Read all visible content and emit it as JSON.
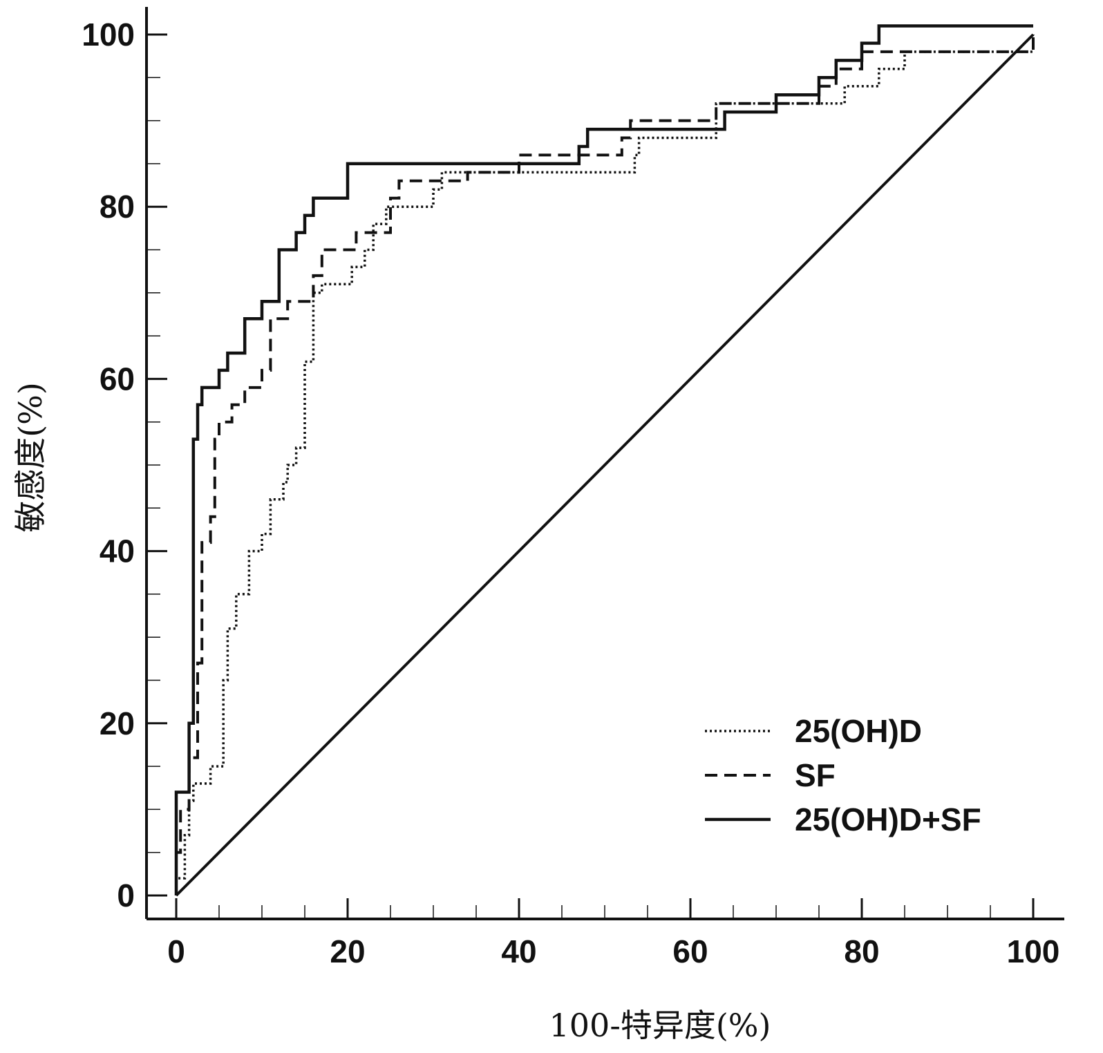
{
  "chart_data": {
    "type": "line",
    "title": "",
    "xlabel": "100-特异度(%)",
    "ylabel": "敏感度(%)",
    "xlim": [
      0,
      100
    ],
    "ylim": [
      0,
      100
    ],
    "xticks": [
      "0",
      "20",
      "40",
      "60",
      "80",
      "100"
    ],
    "yticks": [
      "0",
      "20",
      "40",
      "60",
      "80",
      "100"
    ],
    "grid": false,
    "legend_position": "bottom-right",
    "reference_line": [
      [
        0,
        0
      ],
      [
        100,
        100
      ]
    ],
    "series": [
      {
        "name": "25(OH)D",
        "style": "dotted",
        "points": [
          [
            0,
            0
          ],
          [
            0,
            2
          ],
          [
            1,
            2
          ],
          [
            1,
            7
          ],
          [
            1.5,
            7
          ],
          [
            1.5,
            11
          ],
          [
            2,
            11
          ],
          [
            2,
            13
          ],
          [
            4,
            13
          ],
          [
            4,
            15
          ],
          [
            5.5,
            15
          ],
          [
            5.5,
            25
          ],
          [
            6,
            25
          ],
          [
            6,
            31
          ],
          [
            7,
            31
          ],
          [
            7,
            35
          ],
          [
            8.5,
            35
          ],
          [
            8.5,
            40
          ],
          [
            10,
            40
          ],
          [
            10,
            42
          ],
          [
            11,
            42
          ],
          [
            11,
            46
          ],
          [
            12.5,
            46
          ],
          [
            12.5,
            48
          ],
          [
            13,
            48
          ],
          [
            13,
            50
          ],
          [
            14,
            50
          ],
          [
            14,
            52
          ],
          [
            15,
            52
          ],
          [
            15,
            62
          ],
          [
            16,
            62
          ],
          [
            16,
            70
          ],
          [
            17,
            70
          ],
          [
            17,
            71
          ],
          [
            20.5,
            71
          ],
          [
            20.5,
            73
          ],
          [
            22,
            73
          ],
          [
            22,
            75
          ],
          [
            23,
            75
          ],
          [
            23,
            78
          ],
          [
            24.5,
            78
          ],
          [
            24.5,
            80
          ],
          [
            30,
            80
          ],
          [
            30,
            82
          ],
          [
            31,
            82
          ],
          [
            31,
            84
          ],
          [
            53.5,
            84
          ],
          [
            53.5,
            86
          ],
          [
            54,
            86
          ],
          [
            54,
            88
          ],
          [
            63,
            88
          ],
          [
            63,
            92
          ],
          [
            73,
            92
          ],
          [
            73,
            92
          ],
          [
            78,
            92
          ],
          [
            78,
            94
          ],
          [
            82,
            94
          ],
          [
            82,
            96
          ],
          [
            85,
            96
          ],
          [
            85,
            98
          ],
          [
            100,
            98
          ],
          [
            100,
            100
          ]
        ]
      },
      {
        "name": "SF",
        "style": "dashed",
        "points": [
          [
            0,
            0
          ],
          [
            0,
            5
          ],
          [
            0.5,
            5
          ],
          [
            0.5,
            10
          ],
          [
            1.5,
            10
          ],
          [
            1.5,
            16
          ],
          [
            2.5,
            16
          ],
          [
            2.5,
            27
          ],
          [
            3,
            27
          ],
          [
            3,
            41
          ],
          [
            4,
            41
          ],
          [
            4,
            44
          ],
          [
            4.5,
            44
          ],
          [
            4.5,
            53
          ],
          [
            5,
            53
          ],
          [
            5,
            55
          ],
          [
            6.5,
            55
          ],
          [
            6.5,
            57
          ],
          [
            8,
            57
          ],
          [
            8,
            59
          ],
          [
            10,
            59
          ],
          [
            10,
            61
          ],
          [
            11,
            61
          ],
          [
            11,
            67
          ],
          [
            13,
            67
          ],
          [
            13,
            69
          ],
          [
            16,
            69
          ],
          [
            16,
            72
          ],
          [
            17,
            72
          ],
          [
            17,
            75
          ],
          [
            21,
            75
          ],
          [
            21,
            77
          ],
          [
            25,
            77
          ],
          [
            25,
            81
          ],
          [
            26,
            81
          ],
          [
            26,
            83
          ],
          [
            34,
            83
          ],
          [
            34,
            84
          ],
          [
            40,
            84
          ],
          [
            40,
            86
          ],
          [
            52,
            86
          ],
          [
            52,
            88
          ],
          [
            53,
            88
          ],
          [
            53,
            90
          ],
          [
            63,
            90
          ],
          [
            63,
            92
          ],
          [
            75,
            92
          ],
          [
            75,
            94
          ],
          [
            77,
            94
          ],
          [
            77,
            96
          ],
          [
            80,
            96
          ],
          [
            80,
            98
          ],
          [
            100,
            98
          ],
          [
            100,
            100
          ]
        ]
      },
      {
        "name": "25(OH)D+SF",
        "style": "solid",
        "points": [
          [
            0,
            0
          ],
          [
            0,
            12
          ],
          [
            1.5,
            12
          ],
          [
            1.5,
            20
          ],
          [
            2,
            20
          ],
          [
            2,
            53
          ],
          [
            2.5,
            53
          ],
          [
            2.5,
            57
          ],
          [
            3,
            57
          ],
          [
            3,
            59
          ],
          [
            5,
            59
          ],
          [
            5,
            61
          ],
          [
            6,
            61
          ],
          [
            6,
            63
          ],
          [
            8,
            63
          ],
          [
            8,
            67
          ],
          [
            10,
            67
          ],
          [
            10,
            69
          ],
          [
            12,
            69
          ],
          [
            12,
            75
          ],
          [
            14,
            75
          ],
          [
            14,
            77
          ],
          [
            15,
            77
          ],
          [
            15,
            79
          ],
          [
            16,
            79
          ],
          [
            16,
            81
          ],
          [
            20,
            81
          ],
          [
            20,
            85
          ],
          [
            47,
            85
          ],
          [
            47,
            87
          ],
          [
            48,
            87
          ],
          [
            48,
            89
          ],
          [
            64,
            89
          ],
          [
            64,
            91
          ],
          [
            70,
            91
          ],
          [
            70,
            93
          ],
          [
            75,
            93
          ],
          [
            75,
            95
          ],
          [
            77,
            95
          ],
          [
            77,
            97
          ],
          [
            80,
            97
          ],
          [
            80,
            99
          ],
          [
            82,
            99
          ],
          [
            82,
            101
          ],
          [
            100,
            101
          ]
        ]
      }
    ]
  }
}
